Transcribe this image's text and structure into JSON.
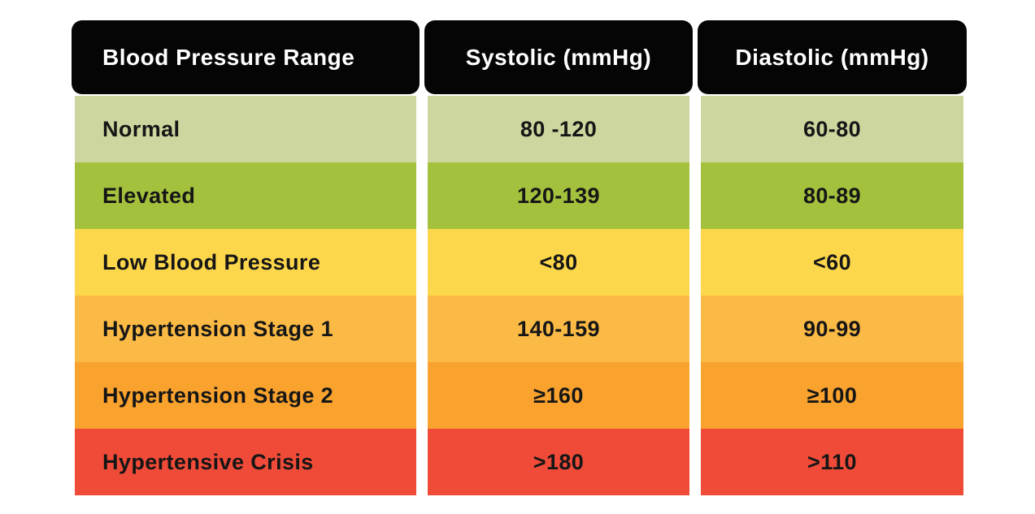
{
  "chart_data": {
    "type": "table",
    "columns": [
      "Blood Pressure Range",
      "Systolic (mmHg)",
      "Diastolic (mmHg)"
    ],
    "rows": [
      {
        "label": "Normal",
        "systolic": "80 -120",
        "diastolic": "60-80",
        "color": "#ccd69e"
      },
      {
        "label": "Elevated",
        "systolic": "120-139",
        "diastolic": "80-89",
        "color": "#a4c13d"
      },
      {
        "label": "Low Blood Pressure",
        "systolic": "<80",
        "diastolic": "<60",
        "color": "#fdd74b"
      },
      {
        "label": "Hypertension Stage 1",
        "systolic": "140-159",
        "diastolic": "90-99",
        "color": "#fbba45"
      },
      {
        "label": "Hypertension Stage 2",
        "systolic": "≥160",
        "diastolic": "≥100",
        "color": "#f9a22e"
      },
      {
        "label": "Hypertensive Crisis",
        "systolic": ">180",
        "diastolic": ">110",
        "color": "#f04b38"
      }
    ],
    "style": {
      "header_bg": "#050505",
      "header_text": "#ffffff",
      "row_text": "#161616",
      "page_bg": "#ffffff"
    },
    "layout_hints": {
      "grid": false,
      "legend": "none",
      "gutters": "white vertical gaps between the three columns"
    }
  }
}
